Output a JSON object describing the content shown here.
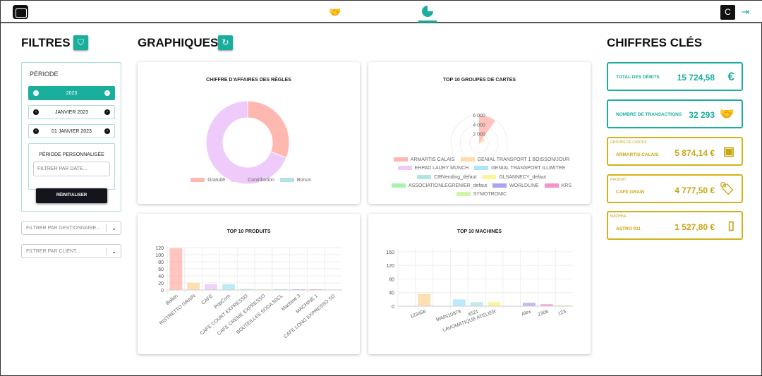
{
  "header": {
    "avatar_letter": "C",
    "icons": [
      "app-logo-icon",
      "handshake-icon",
      "chart-pie-icon",
      "logout-icon"
    ]
  },
  "filters": {
    "title": "FILTRES",
    "period_label": "PÉRIODE",
    "year": "2023",
    "month": "JANVIER 2023",
    "day": "01 JANVIER 2023",
    "custom_label": "PÉRIODE PERSONNALISÉE",
    "date_placeholder": "FILTRER PAR DATE...",
    "reset": "RÉINITIALISER",
    "manager_placeholder": "FILTRER PAR GESTIONNAIRE...",
    "client_placeholder": "FILTRER PAR CLIENT..."
  },
  "charts_title": "GRAPHIQUES",
  "kpi_title": "CHIFFRES CLÉS",
  "colors": {
    "accent": "#1aaf9d",
    "gold": "#c9a514"
  },
  "kpis": [
    {
      "label": "TOTAL DES DÉBITS",
      "value": "15 724,58",
      "icon": "euro-icon"
    },
    {
      "label": "NOMBRE DE TRANSACTIONS",
      "value": "32 293",
      "icon": "handshake-icon"
    },
    {
      "category": "GROUPE DE CARTES",
      "label": "ARMARTIS CALAIS",
      "value": "5 874,14 €",
      "icon": "users-card-icon"
    },
    {
      "category": "PRODUIT",
      "label": "CAFE GRAIN",
      "value": "4 777,50 €",
      "icon": "tag-icon"
    },
    {
      "category": "MACHINE",
      "label": "ASTRO 011",
      "value": "1 527,80 €",
      "icon": "mobile-icon"
    }
  ],
  "chart_data": [
    {
      "type": "pie",
      "title": "CHIFFRE D'AFFAIRES DES RÈGLES",
      "donut": true,
      "categories": [
        "Gratuité",
        "Contribution",
        "Bonus"
      ],
      "values": [
        31,
        69,
        0
      ],
      "colors": [
        "#ffb8b0",
        "#eecbfb",
        "#b2e4e4"
      ],
      "legend": "bottom"
    },
    {
      "type": "polarArea",
      "title": "TOP 10 GROUPES DE CARTES",
      "ticks": [
        "2 000",
        "4 000",
        "6 000"
      ],
      "rmax": 6000,
      "categories": [
        "ARMARTIS CALAIS",
        "GENIAL TRANSPORT 1 BOISSON/JOUR",
        "EHPAD LAURY MUNCH",
        "GENIAL TRANSPORT ILLIMITEE",
        "CIBVending_defaut",
        "GLSANNECY_defaut",
        "ASSOCIATIONLEGRENIER_defaut",
        "WORLDLINE",
        "KRS",
        "SYMOTRONIC"
      ],
      "values": [
        5874,
        1300,
        300,
        250,
        100,
        80,
        60,
        50,
        40,
        30
      ],
      "colors": [
        "#ffb8b0",
        "#fedba8",
        "#eecbfb",
        "#aee6f8",
        "#b2e4e4",
        "#fef59a",
        "#a6f2b0",
        "#a9a3f2",
        "#f592cb",
        "#cff5a8"
      ],
      "legend": "bottom"
    },
    {
      "type": "bar",
      "title": "TOP 10 PRODUITS",
      "categories": [
        "Ballon",
        "RISTRETTO GRAIN",
        "CAFE",
        "PopCorn",
        "CAFE COURT EXPRESSO",
        "CAFE CREME EXPRESSO",
        "BOUTEILLES SODA 50CL",
        "Machine 3",
        "MACHINE 1",
        "CAFE LONG EXPRESSO SG"
      ],
      "values": [
        118,
        21,
        16,
        16,
        3,
        2,
        2,
        2,
        2,
        1
      ],
      "yticks": [
        0,
        20,
        40,
        60,
        80,
        100,
        120
      ],
      "ylim": [
        0,
        120
      ],
      "grid": true
    },
    {
      "type": "bar",
      "title": "TOP 10 MACHINES",
      "categories": [
        "",
        "123456",
        "",
        "MAIN10878",
        "4521",
        "LAVOMATIQUE ATELIER",
        "",
        "Alex",
        "2306",
        "123"
      ],
      "values": [
        0,
        36,
        0,
        20,
        12,
        12,
        0,
        10,
        6,
        3
      ],
      "yticks": [
        0,
        40,
        80,
        120,
        160
      ],
      "ylim": [
        0,
        170
      ],
      "grid": true
    }
  ]
}
